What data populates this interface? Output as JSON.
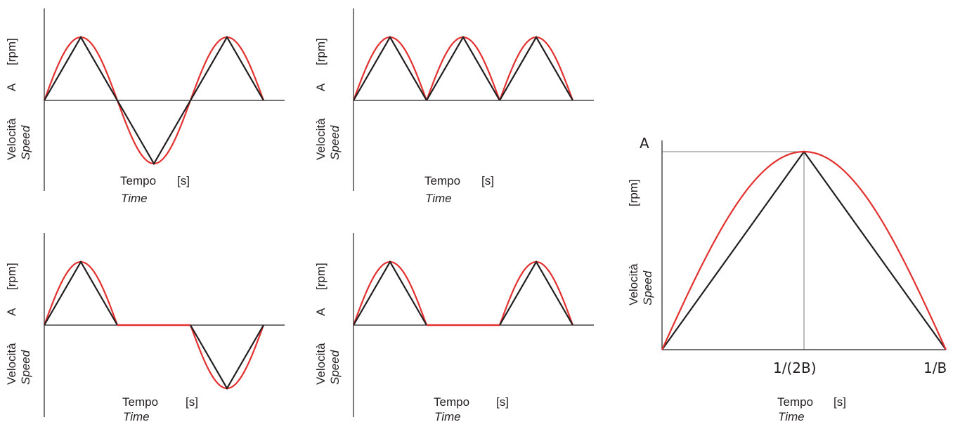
{
  "labels": {
    "velocita": "Velocità",
    "speed": "Speed",
    "amplitude": "A",
    "rpm_unit": "[rpm]",
    "tempo": "Tempo",
    "time": "Time",
    "s_unit": "[s]"
  },
  "detail": {
    "amplitude": "A",
    "half_period": "1/(2B)",
    "period": "1/B"
  },
  "colors": {
    "sinusoid": "#e2312f",
    "triangle": "#231f20",
    "axis": "#231f20",
    "guide": "#555555"
  },
  "diagrams": [
    {
      "pattern": [
        "+",
        "-",
        "+"
      ]
    },
    {
      "pattern": [
        "+",
        "+",
        "+"
      ]
    },
    {
      "pattern": [
        "+",
        "0",
        "-"
      ]
    },
    {
      "pattern": [
        "+",
        "0",
        "+"
      ]
    }
  ]
}
